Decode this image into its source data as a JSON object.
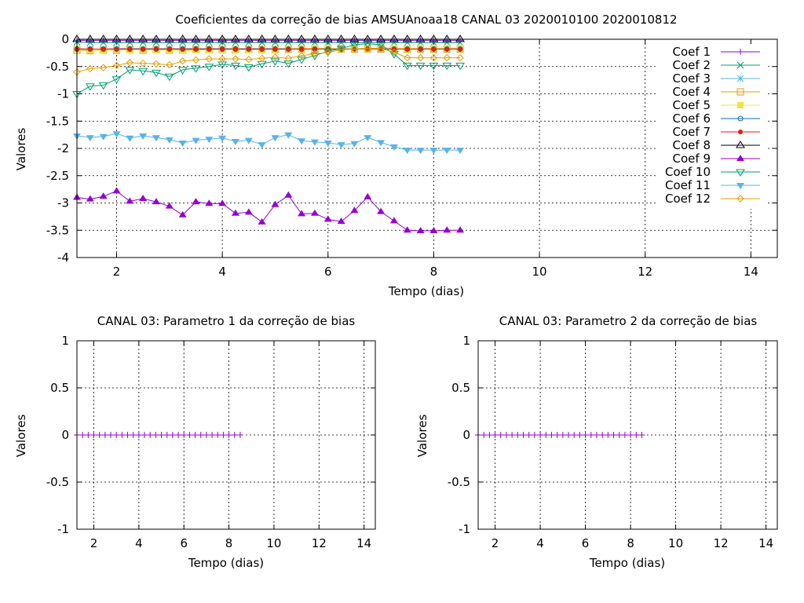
{
  "chart_data": [
    {
      "type": "line",
      "title": "Coeficientes da correção de bias AMSUAnoaa18 CANAL 03 2020010100 2020010812",
      "xlabel": "Tempo (dias)",
      "ylabel": "Valores",
      "xlim": [
        1.25,
        14.5
      ],
      "ylim": [
        -4,
        0
      ],
      "xticks": [
        2,
        4,
        6,
        8,
        10,
        12,
        14
      ],
      "yticks": [
        0,
        -0.5,
        -1,
        -1.5,
        -2,
        -2.5,
        -3,
        -3.5,
        -4
      ],
      "ytick_labels": [
        "0",
        "-0.5",
        "-1",
        "-1.5",
        "-2",
        "-2.5",
        "-3",
        "-3.5",
        "-4"
      ],
      "grid": true,
      "legend_position": "top-right",
      "x": [
        1.25,
        1.5,
        1.75,
        2.0,
        2.25,
        2.5,
        2.75,
        3.0,
        3.25,
        3.5,
        3.75,
        4.0,
        4.25,
        4.5,
        4.75,
        5.0,
        5.25,
        5.5,
        5.75,
        6.0,
        6.25,
        6.5,
        6.75,
        7.0,
        7.25,
        7.5,
        7.75,
        8.0,
        8.25,
        8.5
      ],
      "series": [
        {
          "name": "Coef 1",
          "color": "#9400d3",
          "marker": "plus",
          "values": [
            -0.02,
            -0.02,
            -0.02,
            -0.02,
            -0.02,
            -0.02,
            -0.02,
            -0.02,
            -0.02,
            -0.02,
            -0.02,
            -0.02,
            -0.02,
            -0.02,
            -0.02,
            -0.02,
            -0.02,
            -0.02,
            -0.02,
            -0.02,
            -0.02,
            -0.02,
            -0.02,
            -0.02,
            -0.02,
            -0.02,
            -0.02,
            -0.02,
            -0.02,
            -0.02
          ]
        },
        {
          "name": "Coef 2",
          "color": "#009e73",
          "marker": "cross",
          "values": [
            -0.05,
            -0.06,
            -0.06,
            -0.06,
            -0.06,
            -0.06,
            -0.06,
            -0.06,
            -0.06,
            -0.06,
            -0.06,
            -0.06,
            -0.06,
            -0.06,
            -0.06,
            -0.06,
            -0.06,
            -0.06,
            -0.06,
            -0.06,
            -0.06,
            -0.06,
            -0.06,
            -0.06,
            -0.06,
            -0.06,
            -0.06,
            -0.06,
            -0.06,
            -0.06
          ]
        },
        {
          "name": "Coef 3",
          "color": "#56b4e9",
          "marker": "star",
          "values": [
            -0.17,
            -0.18,
            -0.18,
            -0.17,
            -0.17,
            -0.17,
            -0.17,
            -0.17,
            -0.17,
            -0.17,
            -0.17,
            -0.17,
            -0.17,
            -0.17,
            -0.17,
            -0.17,
            -0.17,
            -0.17,
            -0.17,
            -0.17,
            -0.17,
            -0.17,
            -0.17,
            -0.17,
            -0.17,
            -0.17,
            -0.17,
            -0.17,
            -0.17,
            -0.17
          ]
        },
        {
          "name": "Coef 4",
          "color": "#e69f00",
          "marker": "square-open",
          "values": [
            -0.2,
            -0.21,
            -0.2,
            -0.2,
            -0.19,
            -0.2,
            -0.19,
            -0.2,
            -0.2,
            -0.19,
            -0.19,
            -0.19,
            -0.19,
            -0.19,
            -0.19,
            -0.19,
            -0.18,
            -0.18,
            -0.18,
            -0.18,
            -0.18,
            -0.18,
            -0.18,
            -0.18,
            -0.18,
            -0.18,
            -0.18,
            -0.18,
            -0.18,
            -0.18
          ]
        },
        {
          "name": "Coef 5",
          "color": "#f0e442",
          "marker": "square-filled",
          "values": [
            -0.18,
            -0.2,
            -0.21,
            -0.19,
            -0.2,
            -0.19,
            -0.2,
            -0.2,
            -0.21,
            -0.2,
            -0.2,
            -0.19,
            -0.19,
            -0.2,
            -0.19,
            -0.19,
            -0.17,
            -0.18,
            -0.16,
            -0.16,
            -0.18,
            -0.17,
            -0.18,
            -0.15,
            -0.16,
            -0.17,
            -0.16,
            -0.16,
            -0.16,
            -0.16
          ]
        },
        {
          "name": "Coef 6",
          "color": "#0072b2",
          "marker": "circle-open",
          "values": [
            -0.18,
            -0.18,
            -0.18,
            -0.18,
            -0.18,
            -0.18,
            -0.18,
            -0.18,
            -0.18,
            -0.18,
            -0.18,
            -0.18,
            -0.18,
            -0.18,
            -0.18,
            -0.18,
            -0.18,
            -0.18,
            -0.18,
            -0.18,
            -0.18,
            -0.18,
            -0.18,
            -0.18,
            -0.18,
            -0.18,
            -0.18,
            -0.18,
            -0.18,
            -0.18
          ]
        },
        {
          "name": "Coef 7",
          "color": "#e51e10",
          "marker": "circle-filled",
          "values": [
            -0.18,
            -0.18,
            -0.18,
            -0.18,
            -0.18,
            -0.18,
            -0.18,
            -0.18,
            -0.18,
            -0.18,
            -0.18,
            -0.18,
            -0.18,
            -0.18,
            -0.18,
            -0.18,
            -0.18,
            -0.18,
            -0.18,
            -0.18,
            -0.18,
            -0.18,
            -0.18,
            -0.18,
            -0.18,
            -0.18,
            -0.18,
            -0.18,
            -0.18,
            -0.18
          ]
        },
        {
          "name": "Coef 8",
          "color": "#000000",
          "marker": "triangle-open",
          "values": [
            0,
            0,
            0,
            0,
            0,
            0,
            0,
            0,
            0,
            0,
            0,
            0,
            0,
            0,
            0,
            0,
            0,
            0,
            0,
            0,
            0,
            0,
            0,
            0,
            0,
            0,
            0,
            0,
            0,
            0
          ]
        },
        {
          "name": "Coef 9",
          "color": "#9400d3",
          "marker": "triangle-filled",
          "values": [
            -2.9,
            -2.93,
            -2.88,
            -2.78,
            -2.97,
            -2.92,
            -2.98,
            -3.06,
            -3.22,
            -2.98,
            -3.01,
            -3.01,
            -3.19,
            -3.17,
            -3.35,
            -3.03,
            -2.86,
            -3.2,
            -3.19,
            -3.3,
            -3.34,
            -3.14,
            -2.89,
            -3.16,
            -3.33,
            -3.5,
            -3.51,
            -3.51,
            -3.5,
            -3.5
          ]
        },
        {
          "name": "Coef 10",
          "color": "#009e73",
          "marker": "triangle-down-open",
          "values": [
            -1.0,
            -0.86,
            -0.84,
            -0.73,
            -0.56,
            -0.58,
            -0.61,
            -0.68,
            -0.56,
            -0.53,
            -0.5,
            -0.46,
            -0.48,
            -0.51,
            -0.45,
            -0.4,
            -0.44,
            -0.37,
            -0.3,
            -0.22,
            -0.17,
            -0.1,
            -0.08,
            -0.1,
            -0.27,
            -0.48,
            -0.48,
            -0.48,
            -0.48,
            -0.48
          ]
        },
        {
          "name": "Coef 11",
          "color": "#56b4e9",
          "marker": "triangle-down-filled",
          "values": [
            -1.77,
            -1.8,
            -1.78,
            -1.73,
            -1.81,
            -1.77,
            -1.8,
            -1.84,
            -1.9,
            -1.85,
            -1.83,
            -1.81,
            -1.87,
            -1.85,
            -1.93,
            -1.8,
            -1.75,
            -1.86,
            -1.88,
            -1.9,
            -1.93,
            -1.91,
            -1.8,
            -1.89,
            -1.97,
            -2.03,
            -2.03,
            -2.03,
            -2.03,
            -2.03
          ]
        },
        {
          "name": "Coef 12",
          "color": "#e69f00",
          "marker": "diamond-open",
          "values": [
            -0.6,
            -0.54,
            -0.52,
            -0.48,
            -0.43,
            -0.44,
            -0.45,
            -0.47,
            -0.4,
            -0.38,
            -0.36,
            -0.36,
            -0.36,
            -0.37,
            -0.35,
            -0.33,
            -0.35,
            -0.3,
            -0.27,
            -0.24,
            -0.19,
            -0.18,
            -0.17,
            -0.17,
            -0.24,
            -0.34,
            -0.34,
            -0.34,
            -0.34,
            -0.34
          ]
        }
      ]
    },
    {
      "type": "line",
      "title": "CANAL 03: Parametro 1 da correção de bias",
      "xlabel": "Tempo (dias)",
      "ylabel": "Valores",
      "xlim": [
        1.25,
        14.5
      ],
      "ylim": [
        -1,
        1
      ],
      "xticks": [
        2,
        4,
        6,
        8,
        10,
        12,
        14
      ],
      "yticks": [
        1,
        0.5,
        0,
        -0.5,
        -1
      ],
      "ytick_labels": [
        "1",
        "0.5",
        "0",
        "-0.5",
        "-1"
      ],
      "grid": true,
      "x": [
        1.25,
        1.5,
        1.75,
        2.0,
        2.25,
        2.5,
        2.75,
        3.0,
        3.25,
        3.5,
        3.75,
        4.0,
        4.25,
        4.5,
        4.75,
        5.0,
        5.25,
        5.5,
        5.75,
        6.0,
        6.25,
        6.5,
        6.75,
        7.0,
        7.25,
        7.5,
        7.75,
        8.0,
        8.25,
        8.5
      ],
      "series": [
        {
          "color": "#9400d3",
          "marker": "plus",
          "values": [
            0,
            0,
            0,
            0,
            0,
            0,
            0,
            0,
            0,
            0,
            0,
            0,
            0,
            0,
            0,
            0,
            0,
            0,
            0,
            0,
            0,
            0,
            0,
            0,
            0,
            0,
            0,
            0,
            0,
            0
          ]
        }
      ]
    },
    {
      "type": "line",
      "title": "CANAL 03: Parametro 2 da correção de bias",
      "xlabel": "Tempo (dias)",
      "ylabel": "Valores",
      "xlim": [
        1.25,
        14.5
      ],
      "ylim": [
        -1,
        1
      ],
      "xticks": [
        2,
        4,
        6,
        8,
        10,
        12,
        14
      ],
      "yticks": [
        1,
        0.5,
        0,
        -0.5,
        -1
      ],
      "ytick_labels": [
        "1",
        "0.5",
        "0",
        "-0.5",
        "-1"
      ],
      "grid": true,
      "x": [
        1.25,
        1.5,
        1.75,
        2.0,
        2.25,
        2.5,
        2.75,
        3.0,
        3.25,
        3.5,
        3.75,
        4.0,
        4.25,
        4.5,
        4.75,
        5.0,
        5.25,
        5.5,
        5.75,
        6.0,
        6.25,
        6.5,
        6.75,
        7.0,
        7.25,
        7.5,
        7.75,
        8.0,
        8.25,
        8.5
      ],
      "series": [
        {
          "color": "#9400d3",
          "marker": "plus",
          "values": [
            0,
            0,
            0,
            0,
            0,
            0,
            0,
            0,
            0,
            0,
            0,
            0,
            0,
            0,
            0,
            0,
            0,
            0,
            0,
            0,
            0,
            0,
            0,
            0,
            0,
            0,
            0,
            0,
            0,
            0
          ]
        }
      ]
    }
  ]
}
